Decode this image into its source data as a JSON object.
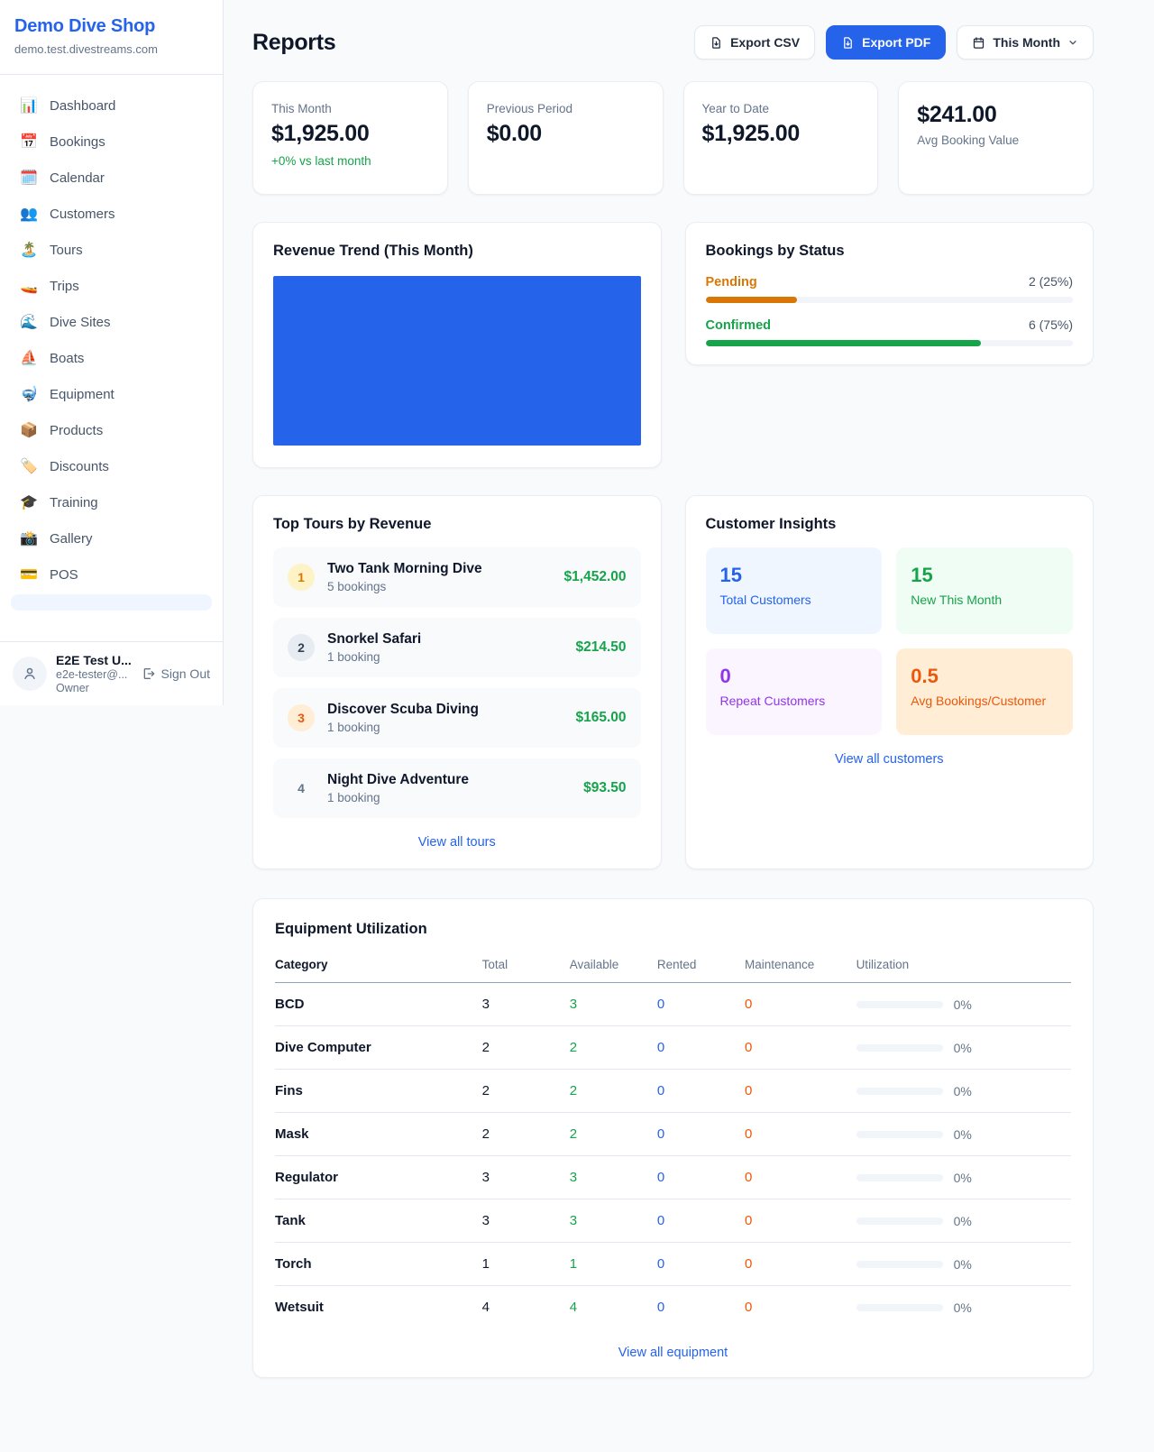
{
  "colors": {
    "accent_blue": "#2563eb",
    "green": "#16a34a",
    "pending_orange": "#d97706",
    "deep_orange": "#ea580c",
    "purple": "#9333ea"
  },
  "sidebar": {
    "brand": "Demo Dive Shop",
    "domain": "demo.test.divestreams.com",
    "nav": [
      {
        "icon": "📊",
        "icon_name": "bar-chart-icon",
        "label": "Dashboard"
      },
      {
        "icon": "📅",
        "icon_name": "calendar-date-icon",
        "label": "Bookings"
      },
      {
        "icon": "🗓️",
        "icon_name": "spiral-calendar-icon",
        "label": "Calendar"
      },
      {
        "icon": "👥",
        "icon_name": "people-icon",
        "label": "Customers"
      },
      {
        "icon": "🏝️",
        "icon_name": "island-icon",
        "label": "Tours"
      },
      {
        "icon": "🚤",
        "icon_name": "speedboat-icon",
        "label": "Trips"
      },
      {
        "icon": "🌊",
        "icon_name": "wave-icon",
        "label": "Dive Sites"
      },
      {
        "icon": "⛵",
        "icon_name": "sailboat-icon",
        "label": "Boats"
      },
      {
        "icon": "🤿",
        "icon_name": "diving-mask-icon",
        "label": "Equipment"
      },
      {
        "icon": "📦",
        "icon_name": "package-icon",
        "label": "Products"
      },
      {
        "icon": "🏷️",
        "icon_name": "tag-icon",
        "label": "Discounts"
      },
      {
        "icon": "🎓",
        "icon_name": "graduation-cap-icon",
        "label": "Training"
      },
      {
        "icon": "📸",
        "icon_name": "camera-icon",
        "label": "Gallery"
      },
      {
        "icon": "💳",
        "icon_name": "credit-card-icon",
        "label": "POS"
      }
    ],
    "user": {
      "name": "E2E Test U...",
      "email": "e2e-tester@...",
      "role": "Owner",
      "sign_out": "Sign Out"
    }
  },
  "header": {
    "title": "Reports",
    "export_csv": "Export CSV",
    "export_pdf": "Export PDF",
    "period": "This Month"
  },
  "stats": [
    {
      "label": "This Month",
      "value": "$1,925.00",
      "delta": "+0% vs last month"
    },
    {
      "label": "Previous Period",
      "value": "$0.00"
    },
    {
      "label": "Year to Date",
      "value": "$1,925.00"
    },
    {
      "label": "Avg Booking Value",
      "value": "$241.00",
      "value_first": true
    }
  ],
  "revenue_trend": {
    "title": "Revenue Trend (This Month)",
    "bar_color": "#2563eb"
  },
  "bookings_by_status": {
    "title": "Bookings by Status",
    "rows": [
      {
        "label": "Pending",
        "value": "2 (25%)",
        "count": 2,
        "pct": 25,
        "color": "#d97706"
      },
      {
        "label": "Confirmed",
        "value": "6 (75%)",
        "count": 6,
        "pct": 75,
        "color": "#16a34a"
      }
    ]
  },
  "top_tours": {
    "title": "Top Tours by Revenue",
    "rows": [
      {
        "rank": "1",
        "name": "Two Tank Morning Dive",
        "bookings": "5 bookings",
        "revenue": "$1,452.00",
        "badge_bg": "#fef3c7",
        "badge_color": "#d97706"
      },
      {
        "rank": "2",
        "name": "Snorkel Safari",
        "bookings": "1 booking",
        "revenue": "$214.50",
        "badge_bg": "#e7ecf2",
        "badge_color": "#334155"
      },
      {
        "rank": "3",
        "name": "Discover Scuba Diving",
        "bookings": "1 booking",
        "revenue": "$165.00",
        "badge_bg": "#ffedd5",
        "badge_color": "#ea580c"
      },
      {
        "rank": "4",
        "name": "Night Dive Adventure",
        "bookings": "1 booking",
        "revenue": "$93.50",
        "badge_bg": "transparent",
        "badge_color": "#64748b"
      }
    ],
    "link": "View all tours"
  },
  "customer_insights": {
    "title": "Customer Insights",
    "tiles": [
      {
        "value": "15",
        "label": "Total Customers",
        "bg": "#eff6ff",
        "color": "#2563eb"
      },
      {
        "value": "15",
        "label": "New This Month",
        "bg": "#f0fdf4",
        "color": "#16a34a"
      },
      {
        "value": "0",
        "label": "Repeat Customers",
        "bg": "#faf5ff",
        "color": "#9333ea"
      },
      {
        "value": "0.5",
        "label": "Avg Bookings/Customer",
        "bg": "#ffedd5",
        "color": "#ea580c"
      }
    ],
    "link": "View all customers"
  },
  "equipment": {
    "title": "Equipment Utilization",
    "columns": [
      "Category",
      "Total",
      "Available",
      "Rented",
      "Maintenance",
      "Utilization"
    ],
    "rows": [
      {
        "category": "BCD",
        "total": "3",
        "available": "3",
        "rented": "0",
        "maintenance": "0",
        "utilization": "0%",
        "utilization_pct": 0
      },
      {
        "category": "Dive Computer",
        "total": "2",
        "available": "2",
        "rented": "0",
        "maintenance": "0",
        "utilization": "0%",
        "utilization_pct": 0
      },
      {
        "category": "Fins",
        "total": "2",
        "available": "2",
        "rented": "0",
        "maintenance": "0",
        "utilization": "0%",
        "utilization_pct": 0
      },
      {
        "category": "Mask",
        "total": "2",
        "available": "2",
        "rented": "0",
        "maintenance": "0",
        "utilization": "0%",
        "utilization_pct": 0
      },
      {
        "category": "Regulator",
        "total": "3",
        "available": "3",
        "rented": "0",
        "maintenance": "0",
        "utilization": "0%",
        "utilization_pct": 0
      },
      {
        "category": "Tank",
        "total": "3",
        "available": "3",
        "rented": "0",
        "maintenance": "0",
        "utilization": "0%",
        "utilization_pct": 0
      },
      {
        "category": "Torch",
        "total": "1",
        "available": "1",
        "rented": "0",
        "maintenance": "0",
        "utilization": "0%",
        "utilization_pct": 0
      },
      {
        "category": "Wetsuit",
        "total": "4",
        "available": "4",
        "rented": "0",
        "maintenance": "0",
        "utilization": "0%",
        "utilization_pct": 0
      }
    ],
    "link": "View all equipment"
  }
}
